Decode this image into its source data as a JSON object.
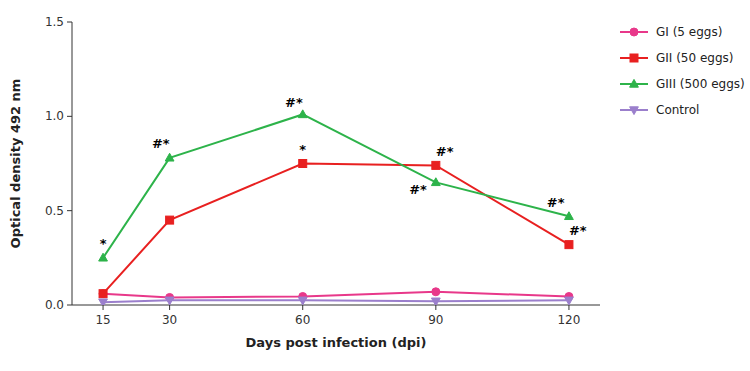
{
  "chart_data": {
    "type": "line",
    "xlabel": "Days post infection (dpi)",
    "ylabel": "Optical density 492 nm",
    "x": [
      15,
      30,
      60,
      90,
      120
    ],
    "xlim": [
      8,
      127
    ],
    "xticks": [
      15,
      30,
      60,
      90,
      120
    ],
    "ylim": [
      0,
      1.5
    ],
    "yticks": [
      {
        "value": 0.0,
        "label": "0.0"
      },
      {
        "value": 0.5,
        "label": "0.5"
      },
      {
        "value": 1.0,
        "label": "1.0"
      },
      {
        "value": 1.5,
        "label": "1.5"
      }
    ],
    "grid": false,
    "legend": "right",
    "series": [
      {
        "name": "GI (5 eggs)",
        "color": "#e8388a",
        "marker": "circle",
        "values": [
          0.06,
          0.04,
          0.045,
          0.07,
          0.045
        ]
      },
      {
        "name": "GII (50 eggs)",
        "color": "#e82020",
        "marker": "square",
        "values": [
          0.06,
          0.45,
          0.75,
          0.74,
          0.32
        ]
      },
      {
        "name": "GIII (500 eggs)",
        "color": "#2db34a",
        "marker": "triangle-up",
        "values": [
          0.25,
          0.78,
          1.01,
          0.65,
          0.47
        ]
      },
      {
        "name": "Control",
        "color": "#9b7fcc",
        "marker": "triangle-down",
        "values": [
          0.015,
          0.025,
          0.025,
          0.02,
          0.025
        ]
      }
    ],
    "annotations": [
      {
        "x": 15,
        "y": 0.25,
        "dx": 0,
        "dy": 0.04,
        "text": "*"
      },
      {
        "x": 30,
        "y": 0.78,
        "dx": -2,
        "dy": 0.04,
        "text": "#*"
      },
      {
        "x": 60,
        "y": 1.01,
        "dx": -2,
        "dy": 0.03,
        "text": "#*"
      },
      {
        "x": 60,
        "y": 0.75,
        "dx": 0,
        "dy": 0.04,
        "text": "*"
      },
      {
        "x": 90,
        "y": 0.74,
        "dx": 2,
        "dy": 0.04,
        "text": "#*"
      },
      {
        "x": 90,
        "y": 0.65,
        "dx": -4,
        "dy": -0.07,
        "text": "#*"
      },
      {
        "x": 120,
        "y": 0.47,
        "dx": -3,
        "dy": 0.04,
        "text": "#*"
      },
      {
        "x": 120,
        "y": 0.32,
        "dx": 2,
        "dy": 0.04,
        "text": "#*"
      }
    ]
  }
}
